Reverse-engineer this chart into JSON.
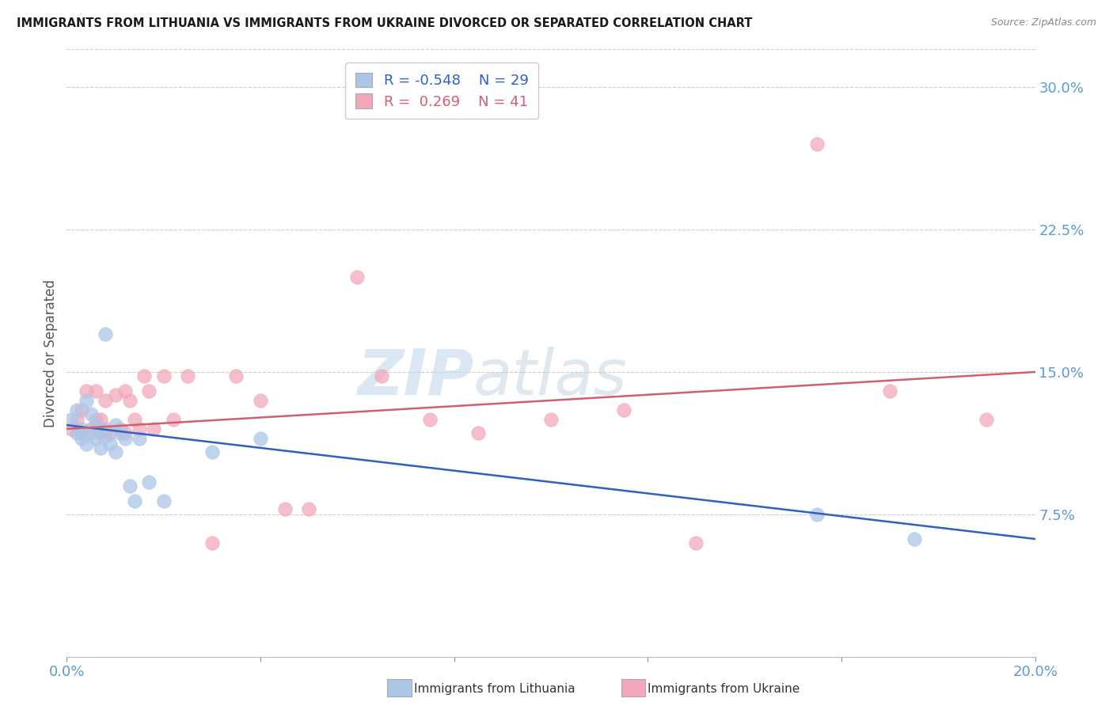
{
  "title": "IMMIGRANTS FROM LITHUANIA VS IMMIGRANTS FROM UKRAINE DIVORCED OR SEPARATED CORRELATION CHART",
  "source": "Source: ZipAtlas.com",
  "ylabel": "Divorced or Separated",
  "xlim": [
    0.0,
    0.2
  ],
  "ylim": [
    0.0,
    0.32
  ],
  "yticks_right": [
    0.075,
    0.15,
    0.225,
    0.3
  ],
  "ytick_labels_right": [
    "7.5%",
    "15.0%",
    "22.5%",
    "30.0%"
  ],
  "xticks": [
    0.0,
    0.04,
    0.08,
    0.12,
    0.16,
    0.2
  ],
  "xtick_labels": [
    "0.0%",
    "",
    "",
    "",
    "",
    "20.0%"
  ],
  "legend_r1": "R = -0.548",
  "legend_n1": "N = 29",
  "legend_r2": "R =  0.269",
  "legend_n2": "N = 41",
  "color_lithuania": "#adc6e8",
  "color_ukraine": "#f2a8ba",
  "color_line_lithuania": "#3060c0",
  "color_line_ukraine": "#d06070",
  "color_axis_right": "#5b9bd5",
  "background_color": "#ffffff",
  "watermark_zip": "ZIP",
  "watermark_atlas": "atlas",
  "blue_trend_start_y": 0.122,
  "blue_trend_end_y": 0.062,
  "pink_trend_start_y": 0.12,
  "pink_trend_end_y": 0.15,
  "lithuania_x": [
    0.001,
    0.002,
    0.002,
    0.003,
    0.003,
    0.004,
    0.004,
    0.005,
    0.005,
    0.006,
    0.006,
    0.007,
    0.007,
    0.008,
    0.008,
    0.009,
    0.01,
    0.01,
    0.011,
    0.012,
    0.013,
    0.014,
    0.015,
    0.017,
    0.02,
    0.03,
    0.04,
    0.155,
    0.175
  ],
  "lithuania_y": [
    0.125,
    0.118,
    0.13,
    0.12,
    0.115,
    0.135,
    0.112,
    0.128,
    0.118,
    0.122,
    0.115,
    0.12,
    0.11,
    0.116,
    0.17,
    0.112,
    0.122,
    0.108,
    0.118,
    0.115,
    0.09,
    0.082,
    0.115,
    0.092,
    0.082,
    0.108,
    0.115,
    0.075,
    0.062
  ],
  "ukraine_x": [
    0.001,
    0.002,
    0.003,
    0.003,
    0.004,
    0.005,
    0.006,
    0.006,
    0.007,
    0.007,
    0.008,
    0.008,
    0.009,
    0.01,
    0.011,
    0.012,
    0.012,
    0.013,
    0.014,
    0.015,
    0.016,
    0.017,
    0.018,
    0.02,
    0.022,
    0.025,
    0.03,
    0.035,
    0.04,
    0.045,
    0.05,
    0.06,
    0.065,
    0.075,
    0.085,
    0.1,
    0.115,
    0.13,
    0.155,
    0.17,
    0.19
  ],
  "ukraine_y": [
    0.12,
    0.125,
    0.13,
    0.118,
    0.14,
    0.12,
    0.125,
    0.14,
    0.118,
    0.125,
    0.12,
    0.135,
    0.118,
    0.138,
    0.12,
    0.14,
    0.118,
    0.135,
    0.125,
    0.12,
    0.148,
    0.14,
    0.12,
    0.148,
    0.125,
    0.148,
    0.06,
    0.148,
    0.135,
    0.078,
    0.078,
    0.2,
    0.148,
    0.125,
    0.118,
    0.125,
    0.13,
    0.06,
    0.27,
    0.14,
    0.125
  ]
}
